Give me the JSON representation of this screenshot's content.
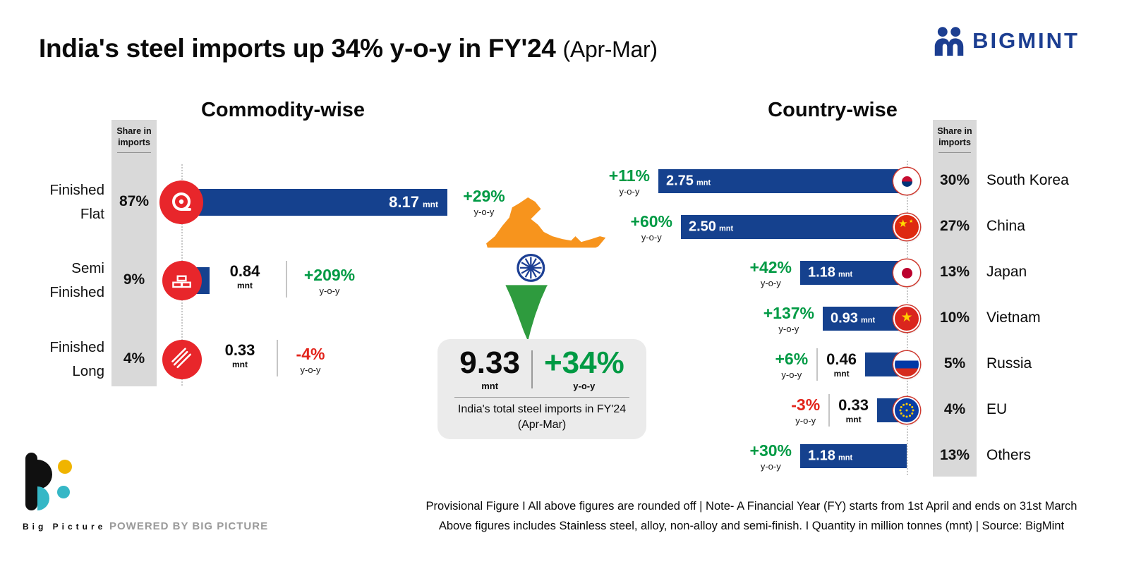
{
  "header": {
    "title": "India's steel imports up 34% y-o-y in FY'24",
    "title_suffix": "(Apr-Mar)",
    "brand": "BIGMINT"
  },
  "labels": {
    "mnt": "mnt",
    "yoy": "y-o-y"
  },
  "commodity": {
    "heading": "Commodity-wise",
    "share_header": "Share in imports",
    "rows": [
      {
        "label1": "Finished",
        "label2": "Flat",
        "share": "87%",
        "value": "8.17",
        "value_num": 8.17,
        "growth": "+29%",
        "trend": "up",
        "icon": "coil-icon"
      },
      {
        "label1": "Semi",
        "label2": "Finished",
        "share": "9%",
        "value": "0.84",
        "value_num": 0.84,
        "growth": "+209%",
        "trend": "up",
        "icon": "billet-icon"
      },
      {
        "label1": "Finished",
        "label2": "Long",
        "share": "4%",
        "value": "0.33",
        "value_num": 0.33,
        "growth": "-4%",
        "trend": "down",
        "icon": "rebar-icon"
      }
    ]
  },
  "total": {
    "value": "9.33",
    "unit": "mnt",
    "growth": "+34%",
    "yoy": "y-o-y",
    "caption": "India's total steel imports in FY'24 (Apr-Mar)"
  },
  "country": {
    "heading": "Country-wise",
    "share_header": "Share in imports",
    "rows": [
      {
        "name": "South Korea",
        "share": "30%",
        "value": "2.75",
        "value_num": 2.75,
        "growth": "+11%",
        "trend": "up",
        "flag": "south-korea"
      },
      {
        "name": "China",
        "share": "27%",
        "value": "2.50",
        "value_num": 2.5,
        "growth": "+60%",
        "trend": "up",
        "flag": "china"
      },
      {
        "name": "Japan",
        "share": "13%",
        "value": "1.18",
        "value_num": 1.18,
        "growth": "+42%",
        "trend": "up",
        "flag": "japan"
      },
      {
        "name": "Vietnam",
        "share": "10%",
        "value": "0.93",
        "value_num": 0.93,
        "growth": "+137%",
        "trend": "up",
        "flag": "vietnam"
      },
      {
        "name": "Russia",
        "share": "5%",
        "value": "0.46",
        "value_num": 0.46,
        "growth": "+6%",
        "trend": "up",
        "flag": "russia"
      },
      {
        "name": "EU",
        "share": "4%",
        "value": "0.33",
        "value_num": 0.33,
        "growth": "-3%",
        "trend": "down",
        "flag": "eu"
      },
      {
        "name": "Others",
        "share": "13%",
        "value": "1.18",
        "value_num": 1.18,
        "growth": "+30%",
        "trend": "up",
        "flag": null
      }
    ]
  },
  "footer": {
    "logo_text": "Big Picture",
    "powered_by": "POWERED BY BIG PICTURE",
    "note_line1": "Provisional Figure  I  All above figures are rounded off | Note- A Financial Year (FY) starts from 1st April and ends on 31st March",
    "note_line2": "Above figures includes Stainless steel, alloy, non-alloy and semi-finish. I Quantity in million tonnes (mnt) | Source: BigMint"
  },
  "chart_data": [
    {
      "type": "bar",
      "title": "Commodity-wise",
      "categories": [
        "Finished Flat",
        "Semi Finished",
        "Finished Long"
      ],
      "series": [
        {
          "name": "Imports (mnt)",
          "values": [
            8.17,
            0.84,
            0.33
          ]
        },
        {
          "name": "Share in imports (%)",
          "values": [
            87,
            9,
            4
          ]
        },
        {
          "name": "y-o-y change (%)",
          "values": [
            29,
            209,
            -4
          ]
        }
      ],
      "unit": "mnt",
      "orientation": "horizontal"
    },
    {
      "type": "bar",
      "title": "Country-wise",
      "categories": [
        "South Korea",
        "China",
        "Japan",
        "Vietnam",
        "Russia",
        "EU",
        "Others"
      ],
      "series": [
        {
          "name": "Imports (mnt)",
          "values": [
            2.75,
            2.5,
            1.18,
            0.93,
            0.46,
            0.33,
            1.18
          ]
        },
        {
          "name": "Share in imports (%)",
          "values": [
            30,
            27,
            13,
            10,
            5,
            4,
            13
          ]
        },
        {
          "name": "y-o-y change (%)",
          "values": [
            11,
            60,
            42,
            137,
            6,
            -3,
            30
          ]
        }
      ],
      "unit": "mnt",
      "orientation": "horizontal",
      "total": {
        "value": 9.33,
        "unit": "mnt",
        "yoy_change_pct": 34
      }
    }
  ]
}
